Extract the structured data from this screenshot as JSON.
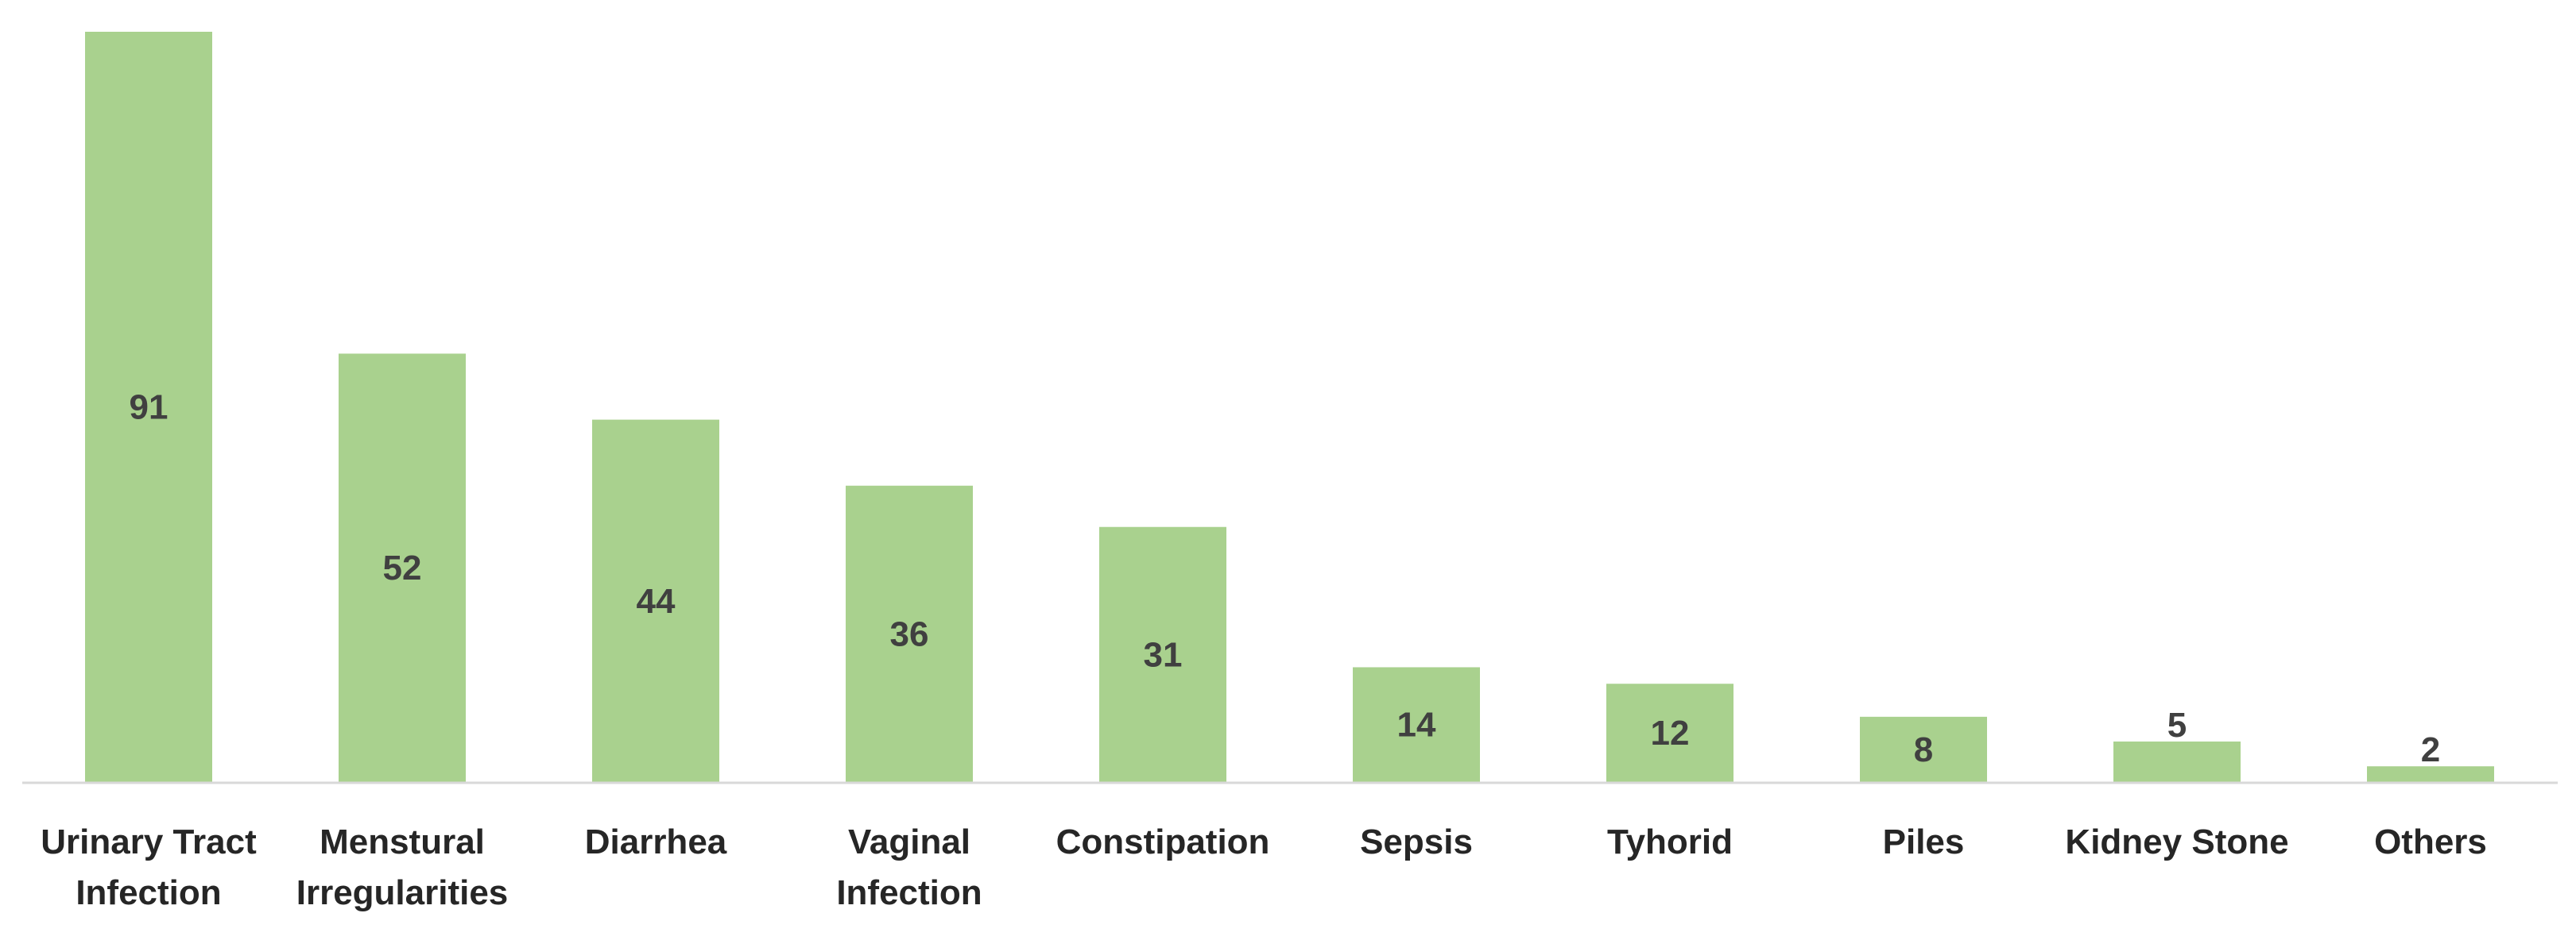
{
  "chart_data": {
    "type": "bar",
    "title": "",
    "xlabel": "",
    "ylabel": "",
    "categories": [
      [
        "Urinary Tract",
        "Infection"
      ],
      [
        "Menstural",
        "Irregularities"
      ],
      [
        "Diarrhea"
      ],
      [
        "Vaginal",
        "Infection"
      ],
      [
        "Constipation"
      ],
      [
        "Sepsis"
      ],
      [
        "Tyhorid"
      ],
      [
        "Piles"
      ],
      [
        "Kidney Stone"
      ],
      [
        "Others"
      ]
    ],
    "values": [
      91,
      52,
      44,
      36,
      31,
      14,
      12,
      8,
      5,
      2
    ],
    "data_labels": [
      "91",
      "52",
      "44",
      "36",
      "31",
      "14",
      "12",
      "8",
      "5",
      "2"
    ],
    "ylim": [
      0,
      91
    ],
    "grid": false,
    "legend": "none",
    "bar_color": "#A9D18E",
    "axis_color": "#D9D9D9",
    "label_color": "#404040"
  }
}
